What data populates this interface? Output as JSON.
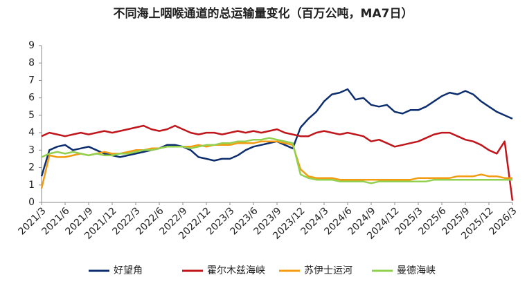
{
  "chart_data": {
    "type": "line",
    "title": "不同海上咽喉通道的总运输量变化（百万公吨，MA7日）",
    "categories": [
      "2021/3",
      null,
      null,
      "2021/6",
      null,
      null,
      "2021/9",
      null,
      null,
      "2021/12",
      null,
      null,
      "2022/3",
      null,
      null,
      "2022/6",
      null,
      null,
      "2022/9",
      null,
      null,
      "2022/12",
      null,
      null,
      "2023/3",
      null,
      null,
      "2023/6",
      null,
      null,
      "2023/9",
      null,
      null,
      "2023/12",
      null,
      null,
      "2024/3",
      null,
      null,
      "2024/6",
      null,
      null,
      "2024/9",
      null,
      null,
      "2024/12",
      null,
      null,
      "2025/3",
      null,
      null,
      "2025/6",
      null,
      null,
      "2025/9",
      null,
      null,
      "2025/12",
      null,
      null,
      "2026/3"
    ],
    "series": [
      {
        "name": "好望角",
        "color": "#0d2e6e",
        "values": [
          1.5,
          3.0,
          3.2,
          3.3,
          3.0,
          3.1,
          3.2,
          3.0,
          2.8,
          2.7,
          2.6,
          2.7,
          2.8,
          2.9,
          3.0,
          3.1,
          3.3,
          3.3,
          3.2,
          3.0,
          2.6,
          2.5,
          2.4,
          2.5,
          2.5,
          2.7,
          3.0,
          3.2,
          3.3,
          3.4,
          3.5,
          3.3,
          3.1,
          4.3,
          4.8,
          5.2,
          5.8,
          6.2,
          6.3,
          6.5,
          5.9,
          6.0,
          5.6,
          5.5,
          5.6,
          5.2,
          5.1,
          5.3,
          5.3,
          5.5,
          5.8,
          6.1,
          6.3,
          6.2,
          6.4,
          6.2,
          5.8,
          5.5,
          5.2,
          5.0,
          4.8
        ]
      },
      {
        "name": "霍尔木兹海峡",
        "color": "#c0151b",
        "values": [
          3.8,
          4.0,
          3.9,
          3.8,
          3.9,
          4.0,
          3.9,
          4.0,
          4.1,
          4.0,
          4.1,
          4.2,
          4.3,
          4.4,
          4.2,
          4.1,
          4.2,
          4.4,
          4.2,
          4.0,
          3.9,
          4.0,
          4.0,
          3.9,
          4.0,
          4.1,
          4.0,
          4.1,
          4.0,
          4.1,
          4.2,
          4.0,
          3.9,
          3.8,
          3.8,
          4.0,
          4.1,
          4.0,
          3.9,
          4.0,
          3.9,
          3.8,
          3.5,
          3.6,
          3.4,
          3.2,
          3.3,
          3.4,
          3.5,
          3.7,
          3.9,
          4.0,
          4.0,
          3.8,
          3.6,
          3.5,
          3.3,
          3.0,
          2.8,
          3.5,
          0.1
        ]
      },
      {
        "name": "苏伊士运河",
        "color": "#f39c12",
        "values": [
          0.8,
          2.7,
          2.6,
          2.6,
          2.7,
          2.8,
          2.7,
          2.8,
          2.9,
          2.8,
          2.8,
          2.9,
          3.0,
          3.0,
          3.1,
          3.1,
          3.2,
          3.2,
          3.2,
          3.2,
          3.3,
          3.2,
          3.3,
          3.3,
          3.3,
          3.4,
          3.4,
          3.4,
          3.5,
          3.5,
          3.5,
          3.4,
          3.3,
          1.9,
          1.5,
          1.4,
          1.4,
          1.4,
          1.3,
          1.3,
          1.3,
          1.3,
          1.3,
          1.3,
          1.3,
          1.3,
          1.3,
          1.3,
          1.4,
          1.4,
          1.4,
          1.4,
          1.4,
          1.5,
          1.5,
          1.5,
          1.6,
          1.5,
          1.5,
          1.4,
          1.4
        ]
      },
      {
        "name": "曼德海峡",
        "color": "#92d050",
        "values": [
          2.6,
          2.8,
          2.9,
          2.8,
          2.9,
          2.8,
          2.7,
          2.8,
          2.7,
          2.7,
          2.8,
          2.8,
          2.9,
          3.0,
          3.0,
          3.1,
          3.2,
          3.2,
          3.2,
          3.1,
          3.2,
          3.3,
          3.3,
          3.4,
          3.4,
          3.5,
          3.5,
          3.6,
          3.6,
          3.7,
          3.6,
          3.5,
          3.4,
          1.6,
          1.4,
          1.3,
          1.3,
          1.3,
          1.2,
          1.2,
          1.2,
          1.2,
          1.1,
          1.2,
          1.2,
          1.2,
          1.2,
          1.2,
          1.2,
          1.2,
          1.3,
          1.3,
          1.3,
          1.3,
          1.3,
          1.3,
          1.3,
          1.3,
          1.3,
          1.3,
          1.3
        ]
      }
    ],
    "ylim": [
      0,
      9
    ],
    "yticks": [
      0,
      1,
      2,
      3,
      4,
      5,
      6,
      7,
      8,
      9
    ],
    "legend": "bottom"
  }
}
